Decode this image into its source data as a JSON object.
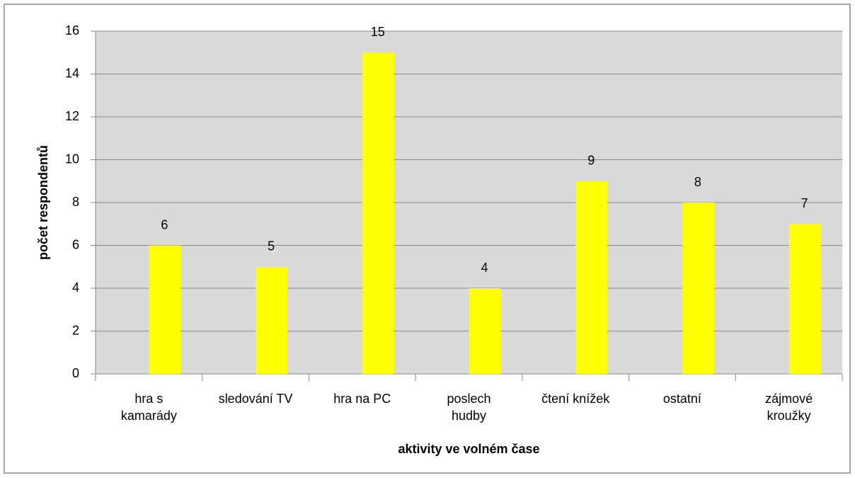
{
  "chart_data": {
    "type": "bar",
    "x_label": "aktivity ve volném čase",
    "y_label": "počet respondentů",
    "categories": [
      "hra s\nkamarády",
      "sledování TV",
      "hra na PC",
      "poslech\nhudby",
      "čtení knížek",
      "ostatní",
      "zájmové\nkroužky"
    ],
    "values": [
      6,
      5,
      15,
      4,
      9,
      8,
      7
    ],
    "color": "#ffff00",
    "ylim": [
      0,
      16
    ],
    "yticks": [
      0,
      2,
      4,
      6,
      8,
      10,
      12,
      14,
      16
    ],
    "grid": true
  }
}
